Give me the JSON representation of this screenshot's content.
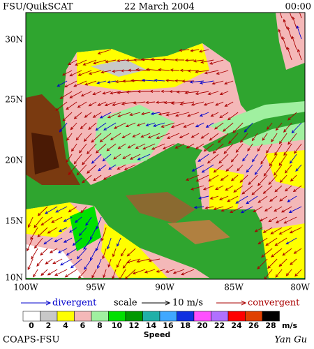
{
  "header": {
    "title": "FSU/QuikSCAT",
    "date": "22 March 2004",
    "time": "00:00"
  },
  "map": {
    "lat_labels": [
      "30N",
      "25N",
      "20N",
      "15N",
      "10N"
    ],
    "lon_labels": [
      "100W",
      "95W",
      "90W",
      "85W",
      "80W"
    ]
  },
  "legend": {
    "divergent": "divergent",
    "scale": "scale",
    "scale_value": "10 m/s",
    "convergent": "convergent"
  },
  "colorbar": {
    "labels": [
      "0",
      "2",
      "4",
      "6",
      "8",
      "10",
      "12",
      "14",
      "16",
      "18",
      "20",
      "22",
      "24",
      "26",
      "28"
    ],
    "colors": [
      "#ffffff",
      "#c8c8c8",
      "#ffff00",
      "#f4b8b8",
      "#a0f0a0",
      "#00e000",
      "#009800",
      "#20b0a8",
      "#40a8ff",
      "#1030e0",
      "#ff50ff",
      "#b070ff",
      "#ff0000",
      "#e04000",
      "#000000"
    ],
    "unit": "m/s",
    "title": "Speed"
  },
  "footer": {
    "left": "COAPS-FSU",
    "right": "Yan Gu"
  }
}
